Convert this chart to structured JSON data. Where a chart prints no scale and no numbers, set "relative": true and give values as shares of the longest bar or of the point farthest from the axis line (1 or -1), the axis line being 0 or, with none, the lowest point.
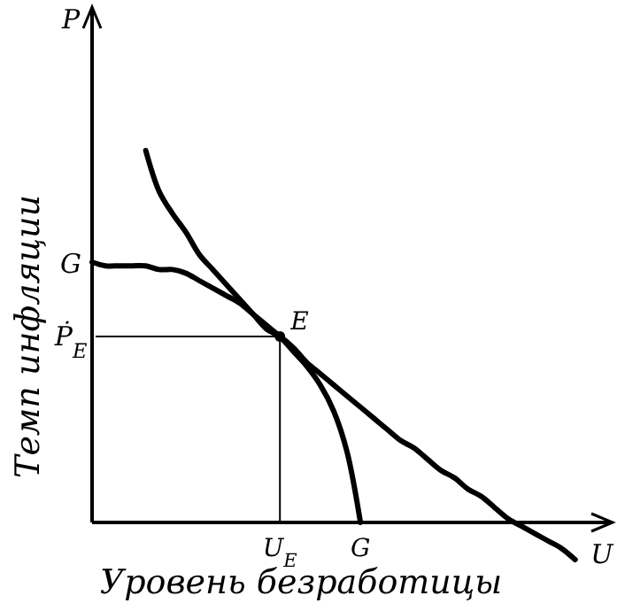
{
  "chart_data": {
    "type": "line",
    "relative": true,
    "xlabel": "Уровень безработицы",
    "ylabel": "Темп инфляции",
    "categories": [
      null,
      null,
      null,
      null,
      null,
      null,
      null,
      null,
      null,
      null,
      null,
      null,
      null,
      null,
      "U$_{E}$",
      null,
      null,
      null,
      null,
      null,
      "G",
      null,
      null,
      null,
      null,
      null,
      null,
      null,
      null,
      null,
      null,
      null,
      null,
      null,
      null,
      null,
      null,
      null,
      null
    ],
    "series": [
      {
        "color": "#000000",
        "values": [
          null,
          null,
          null,
          null,
          1,
          0.89,
          0.83,
          0.78,
          0.72,
          0.68,
          0.64,
          0.6,
          0.56,
          0.52,
          0.5,
          0.47,
          0.43,
          0.4,
          0.37,
          0.34,
          0.31,
          0.28,
          0.25,
          0.22,
          0.2,
          0.17,
          0.14,
          0.12,
          0.09,
          0.07,
          0.04,
          0.01,
          -0.01,
          -0.03,
          -0.05,
          -0.07,
          -0.1,
          null,
          null
        ]
      },
      {
        "color": "#000000",
        "values": [
          0.7,
          0.69,
          0.69,
          0.69,
          0.69,
          0.68,
          0.68,
          0.67,
          0.65,
          0.63,
          0.61,
          0.59,
          0.56,
          0.53,
          0.5,
          0.46,
          0.42,
          0.37,
          0.3,
          0.19,
          0,
          null,
          null,
          null,
          null,
          null,
          null,
          null,
          null,
          null,
          null,
          null,
          null,
          null,
          null,
          null,
          null,
          null,
          null
        ]
      }
    ],
    "ref_lines": [
      {
        "axis": "y",
        "value": 0.5,
        "color": "#000000"
      },
      {
        "axis": "x",
        "value": "U$_{E}$",
        "color": "#000000"
      }
    ],
    "annotations": [
      "P",
      "U",
      {
        "text": "E",
        "x": "U$_{E}$",
        "y": 0.5
      },
      "G",
      "Ṗ$_{E}$"
    ]
  }
}
